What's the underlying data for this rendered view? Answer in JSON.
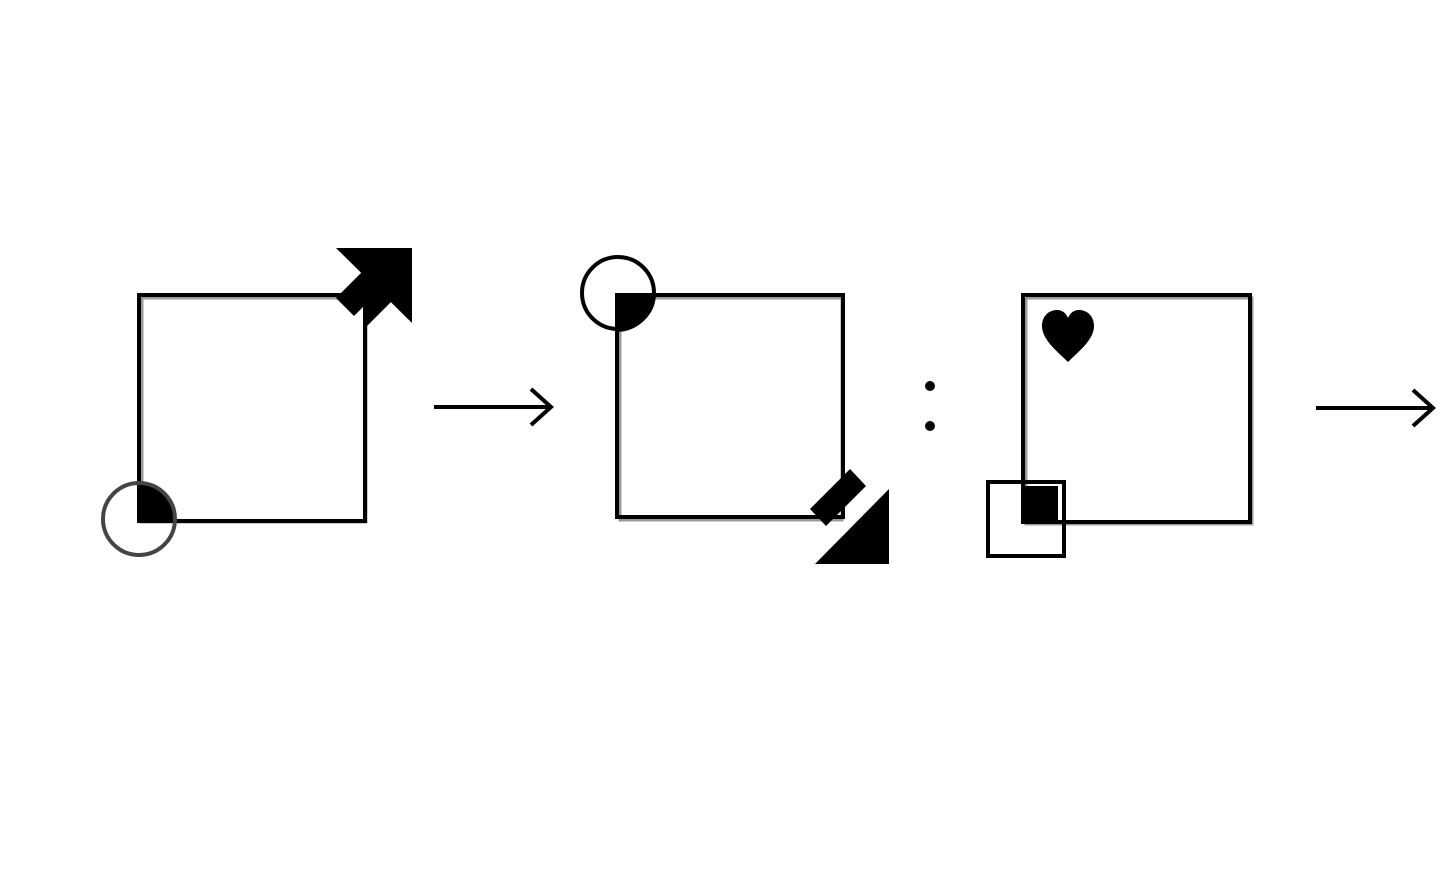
{
  "diagram": {
    "panels": [
      {
        "id": "panel-1",
        "frame": "square",
        "corner_marker": {
          "shape": "circle-with-quarter-fill",
          "corner": "bottom-left"
        },
        "arrow": {
          "icon": "arrow-up-right-icon",
          "corner": "top-right"
        }
      },
      {
        "id": "panel-2",
        "frame": "square",
        "corner_marker": {
          "shape": "circle-with-quarter-fill",
          "corner": "top-left"
        },
        "arrow": {
          "icon": "arrow-down-right-icon",
          "corner": "bottom-right"
        }
      },
      {
        "id": "panel-3",
        "frame": "square",
        "corner_marker": {
          "shape": "square-with-filled-square",
          "corner": "bottom-left"
        },
        "symbol": {
          "icon": "heart-icon",
          "corner": "top-left"
        }
      }
    ],
    "connectors": [
      {
        "icon": "right-arrow-icon",
        "between": [
          "panel-1",
          "panel-2"
        ]
      },
      {
        "icon": "colon-separator-icon",
        "between": [
          "panel-2",
          "panel-3"
        ]
      },
      {
        "icon": "right-arrow-icon",
        "after": "panel-3"
      }
    ],
    "colors": {
      "ink": "#000000",
      "background": "#ffffff",
      "shadow": "#9a9a9a"
    }
  }
}
